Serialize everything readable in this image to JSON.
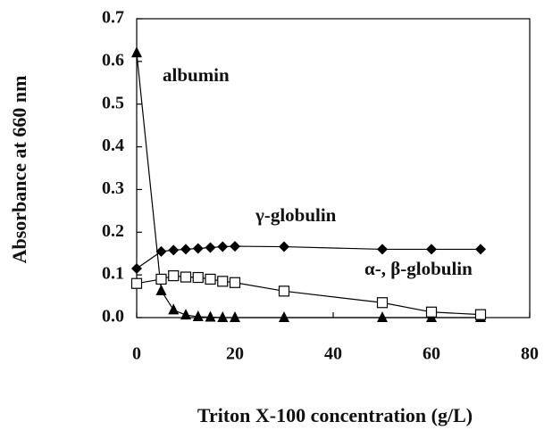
{
  "chart_data": {
    "type": "line",
    "x": [
      0,
      5,
      7.5,
      10,
      12.5,
      15,
      17.5,
      20,
      30,
      50,
      60,
      70
    ],
    "series": [
      {
        "name": "albumin",
        "color": "#000000",
        "marker": "triangle",
        "values": [
          0.62,
          0.063,
          0.018,
          0.006,
          0.002,
          0.001,
          0,
          0,
          0,
          0,
          0,
          0
        ]
      },
      {
        "name": "γ-globulin",
        "color": "#000000",
        "marker": "diamond",
        "values": [
          0.115,
          0.155,
          0.158,
          0.16,
          0.162,
          0.164,
          0.166,
          0.167,
          0.166,
          0.16,
          0.16,
          0.16
        ]
      },
      {
        "name": "α-, β-globulin",
        "color": "#000000",
        "marker": "square",
        "values": [
          0.08,
          0.09,
          0.098,
          0.095,
          0.094,
          0.09,
          0.085,
          0.082,
          0.062,
          0.035,
          0.013,
          0.007
        ]
      }
    ],
    "xlabel": "Triton X-100 concentration (g/L)",
    "ylabel": "Absorbance at 660 nm",
    "xlim": [
      0,
      80
    ],
    "ylim": [
      0,
      0.7
    ],
    "xticks": [
      0,
      20,
      40,
      60,
      80
    ],
    "yticks": [
      {
        "value": 0,
        "label": "0.0"
      },
      0.1,
      0.2,
      0.3,
      0.4,
      0.5,
      0.6,
      0.7
    ],
    "grid": false
  }
}
